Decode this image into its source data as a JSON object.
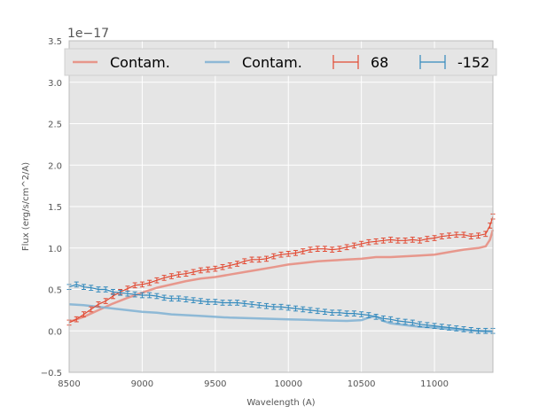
{
  "chart_data": {
    "type": "line",
    "title": "",
    "xlabel": "Wavelength (A)",
    "ylabel": "Flux (erg/s/cm^2/A)",
    "offset_label": "1e−17",
    "xlim": [
      8500,
      11400
    ],
    "ylim": [
      -0.5,
      3.5
    ],
    "grid": true,
    "x_ticks": [
      8500,
      9000,
      9500,
      10000,
      10500,
      11000
    ],
    "x_tick_labels": [
      "8500",
      "9000",
      "9500",
      "10000",
      "10500",
      "11000"
    ],
    "y_ticks": [
      -0.5,
      0.0,
      0.5,
      1.0,
      1.5,
      2.0,
      2.5,
      3.0,
      3.5
    ],
    "y_tick_labels": [
      "−0.5",
      "0.0",
      "0.5",
      "1.0",
      "1.5",
      "2.0",
      "2.5",
      "3.0",
      "3.5"
    ],
    "legend_position": "top",
    "colors": {
      "red": "#e24a33",
      "blue": "#348abd",
      "contam_red": "#e8897c",
      "contam_blue": "#7fb1d4",
      "axes_bg": "#e5e5e5",
      "grid": "#ffffff"
    },
    "series": [
      {
        "name": "Contam.",
        "style": "line",
        "color_key": "contam_red",
        "points": [
          [
            8500,
            0.11
          ],
          [
            8600,
            0.17
          ],
          [
            8700,
            0.25
          ],
          [
            8800,
            0.33
          ],
          [
            8900,
            0.4
          ],
          [
            9000,
            0.46
          ],
          [
            9100,
            0.52
          ],
          [
            9200,
            0.56
          ],
          [
            9300,
            0.6
          ],
          [
            9400,
            0.63
          ],
          [
            9500,
            0.65
          ],
          [
            9600,
            0.68
          ],
          [
            9700,
            0.71
          ],
          [
            9800,
            0.74
          ],
          [
            9900,
            0.77
          ],
          [
            10000,
            0.8
          ],
          [
            10100,
            0.82
          ],
          [
            10200,
            0.84
          ],
          [
            10300,
            0.85
          ],
          [
            10400,
            0.86
          ],
          [
            10500,
            0.87
          ],
          [
            10600,
            0.89
          ],
          [
            10700,
            0.89
          ],
          [
            10800,
            0.9
          ],
          [
            10900,
            0.91
          ],
          [
            11000,
            0.92
          ],
          [
            11100,
            0.95
          ],
          [
            11200,
            0.98
          ],
          [
            11300,
            1.0
          ],
          [
            11350,
            1.02
          ],
          [
            11380,
            1.1
          ],
          [
            11400,
            1.22
          ]
        ]
      },
      {
        "name": "Contam.",
        "style": "line",
        "color_key": "contam_blue",
        "points": [
          [
            8500,
            0.32
          ],
          [
            8600,
            0.31
          ],
          [
            8700,
            0.29
          ],
          [
            8800,
            0.27
          ],
          [
            8900,
            0.25
          ],
          [
            9000,
            0.23
          ],
          [
            9100,
            0.22
          ],
          [
            9200,
            0.2
          ],
          [
            9300,
            0.19
          ],
          [
            9400,
            0.18
          ],
          [
            9500,
            0.17
          ],
          [
            9600,
            0.16
          ],
          [
            9700,
            0.155
          ],
          [
            9800,
            0.15
          ],
          [
            9900,
            0.145
          ],
          [
            10000,
            0.14
          ],
          [
            10100,
            0.135
          ],
          [
            10200,
            0.13
          ],
          [
            10300,
            0.125
          ],
          [
            10400,
            0.12
          ],
          [
            10500,
            0.13
          ],
          [
            10550,
            0.16
          ],
          [
            10600,
            0.18
          ],
          [
            10650,
            0.12
          ],
          [
            10700,
            0.09
          ],
          [
            10800,
            0.07
          ],
          [
            10900,
            0.05
          ],
          [
            11000,
            0.04
          ],
          [
            11100,
            0.02
          ],
          [
            11200,
            0.01
          ],
          [
            11300,
            0.0
          ],
          [
            11400,
            -0.01
          ]
        ]
      },
      {
        "name": "68",
        "style": "errorbar",
        "color_key": "red",
        "yerr": 0.03,
        "points": [
          [
            8500,
            0.1
          ],
          [
            8550,
            0.14
          ],
          [
            8600,
            0.2
          ],
          [
            8650,
            0.26
          ],
          [
            8700,
            0.32
          ],
          [
            8750,
            0.36
          ],
          [
            8800,
            0.42
          ],
          [
            8850,
            0.47
          ],
          [
            8900,
            0.51
          ],
          [
            8950,
            0.55
          ],
          [
            9000,
            0.56
          ],
          [
            9050,
            0.58
          ],
          [
            9100,
            0.61
          ],
          [
            9150,
            0.64
          ],
          [
            9200,
            0.66
          ],
          [
            9250,
            0.68
          ],
          [
            9300,
            0.69
          ],
          [
            9350,
            0.71
          ],
          [
            9400,
            0.73
          ],
          [
            9450,
            0.74
          ],
          [
            9500,
            0.75
          ],
          [
            9550,
            0.77
          ],
          [
            9600,
            0.79
          ],
          [
            9650,
            0.81
          ],
          [
            9700,
            0.84
          ],
          [
            9750,
            0.86
          ],
          [
            9800,
            0.86
          ],
          [
            9850,
            0.87
          ],
          [
            9900,
            0.9
          ],
          [
            9950,
            0.92
          ],
          [
            10000,
            0.93
          ],
          [
            10050,
            0.94
          ],
          [
            10100,
            0.96
          ],
          [
            10150,
            0.98
          ],
          [
            10200,
            0.99
          ],
          [
            10250,
            0.99
          ],
          [
            10300,
            0.98
          ],
          [
            10350,
            0.99
          ],
          [
            10400,
            1.01
          ],
          [
            10450,
            1.03
          ],
          [
            10500,
            1.05
          ],
          [
            10550,
            1.07
          ],
          [
            10600,
            1.08
          ],
          [
            10650,
            1.09
          ],
          [
            10700,
            1.1
          ],
          [
            10750,
            1.09
          ],
          [
            10800,
            1.09
          ],
          [
            10850,
            1.1
          ],
          [
            10900,
            1.09
          ],
          [
            10950,
            1.11
          ],
          [
            11000,
            1.12
          ],
          [
            11050,
            1.14
          ],
          [
            11100,
            1.15
          ],
          [
            11150,
            1.16
          ],
          [
            11200,
            1.16
          ],
          [
            11250,
            1.14
          ],
          [
            11300,
            1.15
          ],
          [
            11350,
            1.17
          ],
          [
            11380,
            1.27
          ],
          [
            11400,
            1.38
          ]
        ]
      },
      {
        "name": "-152",
        "style": "errorbar",
        "color_key": "blue",
        "yerr": 0.03,
        "points": [
          [
            8500,
            0.53
          ],
          [
            8550,
            0.56
          ],
          [
            8600,
            0.53
          ],
          [
            8650,
            0.52
          ],
          [
            8700,
            0.5
          ],
          [
            8750,
            0.5
          ],
          [
            8800,
            0.47
          ],
          [
            8850,
            0.46
          ],
          [
            8900,
            0.45
          ],
          [
            8950,
            0.44
          ],
          [
            9000,
            0.43
          ],
          [
            9050,
            0.43
          ],
          [
            9100,
            0.42
          ],
          [
            9150,
            0.4
          ],
          [
            9200,
            0.39
          ],
          [
            9250,
            0.39
          ],
          [
            9300,
            0.38
          ],
          [
            9350,
            0.37
          ],
          [
            9400,
            0.36
          ],
          [
            9450,
            0.35
          ],
          [
            9500,
            0.35
          ],
          [
            9550,
            0.34
          ],
          [
            9600,
            0.34
          ],
          [
            9650,
            0.34
          ],
          [
            9700,
            0.33
          ],
          [
            9750,
            0.32
          ],
          [
            9800,
            0.31
          ],
          [
            9850,
            0.3
          ],
          [
            9900,
            0.29
          ],
          [
            9950,
            0.29
          ],
          [
            10000,
            0.28
          ],
          [
            10050,
            0.27
          ],
          [
            10100,
            0.26
          ],
          [
            10150,
            0.25
          ],
          [
            10200,
            0.24
          ],
          [
            10250,
            0.23
          ],
          [
            10300,
            0.22
          ],
          [
            10350,
            0.22
          ],
          [
            10400,
            0.21
          ],
          [
            10450,
            0.21
          ],
          [
            10500,
            0.2
          ],
          [
            10550,
            0.19
          ],
          [
            10600,
            0.17
          ],
          [
            10650,
            0.15
          ],
          [
            10700,
            0.14
          ],
          [
            10750,
            0.12
          ],
          [
            10800,
            0.11
          ],
          [
            10850,
            0.1
          ],
          [
            10900,
            0.08
          ],
          [
            10950,
            0.07
          ],
          [
            11000,
            0.06
          ],
          [
            11050,
            0.05
          ],
          [
            11100,
            0.04
          ],
          [
            11150,
            0.03
          ],
          [
            11200,
            0.02
          ],
          [
            11250,
            0.01
          ],
          [
            11300,
            0.0
          ],
          [
            11350,
            0.0
          ],
          [
            11400,
            0.0
          ]
        ]
      }
    ]
  }
}
